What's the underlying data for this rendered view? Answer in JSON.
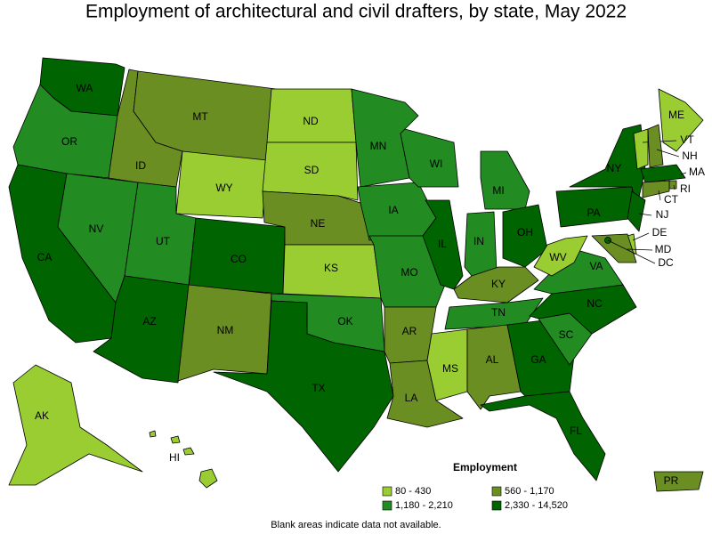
{
  "title": "Employment of architectural and civil drafters, by state, May 2022",
  "legend": {
    "title": "Employment",
    "items": [
      {
        "label": "80 - 430",
        "color": "#9acd32"
      },
      {
        "label": "560 - 1,170",
        "color": "#6b8e23"
      },
      {
        "label": "1,180 - 2,210",
        "color": "#228b22"
      },
      {
        "label": "2,330 - 14,520",
        "color": "#006400"
      }
    ]
  },
  "footnote": "Blank areas indicate data not available.",
  "states": [
    {
      "label": "WA",
      "class": 3
    },
    {
      "label": "OR",
      "class": 2
    },
    {
      "label": "CA",
      "class": 3
    },
    {
      "label": "NV",
      "class": 2
    },
    {
      "label": "ID",
      "class": 1
    },
    {
      "label": "MT",
      "class": 1
    },
    {
      "label": "WY",
      "class": 0
    },
    {
      "label": "UT",
      "class": 2
    },
    {
      "label": "CO",
      "class": 3
    },
    {
      "label": "AZ",
      "class": 3
    },
    {
      "label": "NM",
      "class": 1
    },
    {
      "label": "ND",
      "class": 0
    },
    {
      "label": "SD",
      "class": 0
    },
    {
      "label": "NE",
      "class": 1
    },
    {
      "label": "KS",
      "class": 0
    },
    {
      "label": "OK",
      "class": 2
    },
    {
      "label": "TX",
      "class": 3
    },
    {
      "label": "MN",
      "class": 2
    },
    {
      "label": "IA",
      "class": 2
    },
    {
      "label": "MO",
      "class": 2
    },
    {
      "label": "AR",
      "class": 1
    },
    {
      "label": "LA",
      "class": 1
    },
    {
      "label": "WI",
      "class": 2
    },
    {
      "label": "IL",
      "class": 3
    },
    {
      "label": "MI",
      "class": 2
    },
    {
      "label": "IN",
      "class": 2
    },
    {
      "label": "OH",
      "class": 3
    },
    {
      "label": "KY",
      "class": 1
    },
    {
      "label": "TN",
      "class": 2
    },
    {
      "label": "MS",
      "class": 0
    },
    {
      "label": "AL",
      "class": 1
    },
    {
      "label": "GA",
      "class": 3
    },
    {
      "label": "FL",
      "class": 3
    },
    {
      "label": "SC",
      "class": 2
    },
    {
      "label": "NC",
      "class": 3
    },
    {
      "label": "VA",
      "class": 2
    },
    {
      "label": "WV",
      "class": 0
    },
    {
      "label": "PA",
      "class": 3
    },
    {
      "label": "NY",
      "class": 3
    },
    {
      "label": "NJ",
      "class": 3
    },
    {
      "label": "ME",
      "class": 0
    },
    {
      "label": "VT",
      "class": 0
    },
    {
      "label": "NH",
      "class": 1
    },
    {
      "label": "MA",
      "class": 3
    },
    {
      "label": "RI",
      "class": 1
    },
    {
      "label": "CT",
      "class": 1
    },
    {
      "label": "DE",
      "class": 0
    },
    {
      "label": "MD",
      "class": 1
    },
    {
      "label": "DC",
      "class": 3
    },
    {
      "label": "AK",
      "class": 0
    },
    {
      "label": "HI",
      "class": 0
    },
    {
      "label": "PR",
      "class": 1
    }
  ]
}
